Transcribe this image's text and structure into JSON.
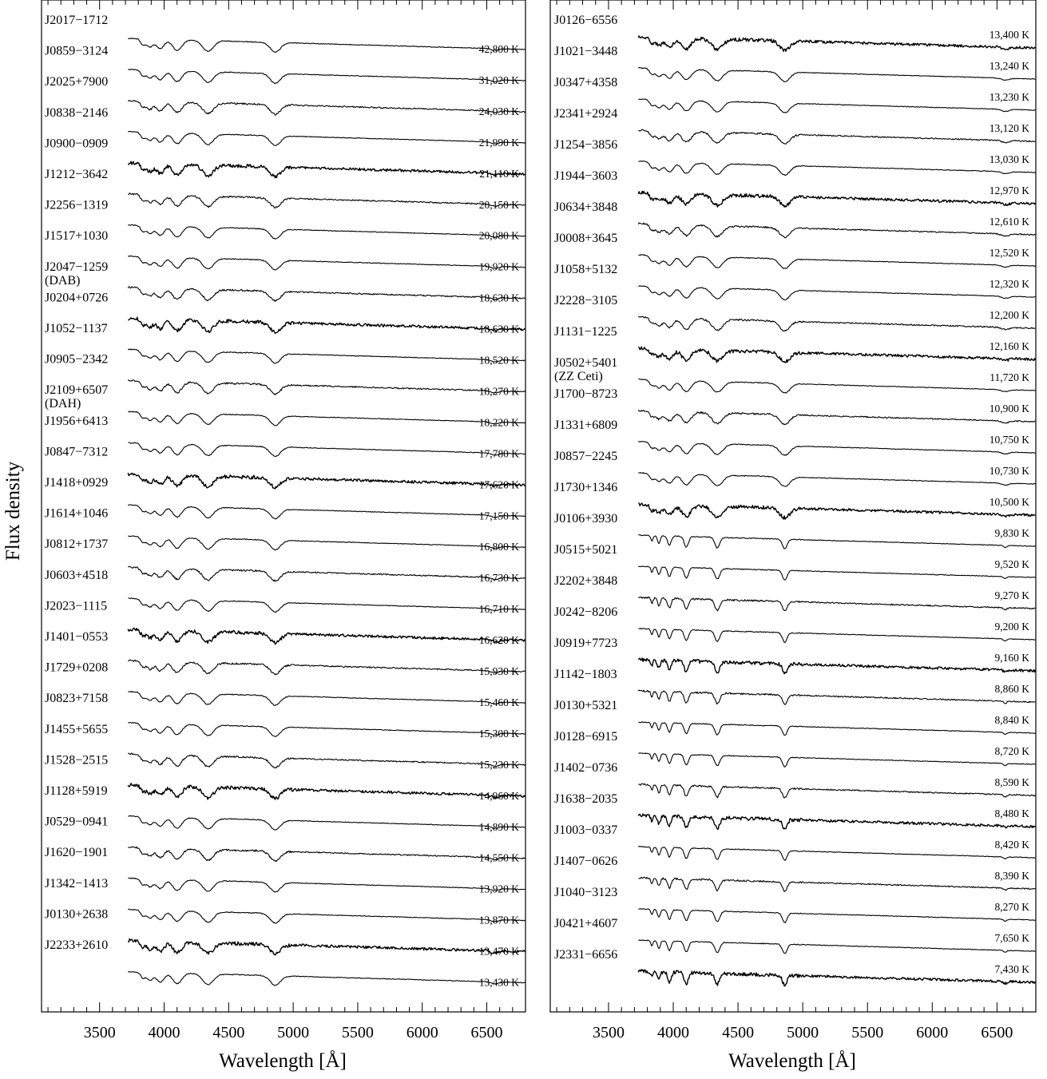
{
  "chart_data": [
    {
      "type": "line",
      "xlabel": "Wavelength [Å]",
      "ylabel": "Flux density",
      "xlim": [
        3050,
        6800
      ],
      "xticks": [
        3500,
        4000,
        4500,
        5000,
        5500,
        6000,
        6500
      ],
      "spectra": [
        {
          "name": "J2017−1712",
          "temp": null
        },
        {
          "name": "J0859−3124",
          "temp": "42,800 K"
        },
        {
          "name": "J2025+7900",
          "temp": "31,020 K"
        },
        {
          "name": "J0838−2146",
          "temp": "24,030 K"
        },
        {
          "name": "J0900−0909",
          "temp": "21,990 K"
        },
        {
          "name": "J1212−3642",
          "temp": "21,110 K"
        },
        {
          "name": "J2256−1319",
          "temp": "20,150 K"
        },
        {
          "name": "J1517+1030",
          "temp": "20,080 K"
        },
        {
          "name": "J2047−1259",
          "sublabel": "(DAB)",
          "temp": "19,920 K"
        },
        {
          "name": "J0204+0726",
          "temp": "18,630 K"
        },
        {
          "name": "J1052−1137",
          "temp": "18,630 K"
        },
        {
          "name": "J0905−2342",
          "temp": "18,520 K"
        },
        {
          "name": "J2109+6507",
          "sublabel": "(DAH)",
          "temp": "18,270 K"
        },
        {
          "name": "J1956+6413",
          "temp": "18,220 K"
        },
        {
          "name": "J0847−7312",
          "temp": "17,780 K"
        },
        {
          "name": "J1418+0929",
          "temp": "17,620 K"
        },
        {
          "name": "J1614+1046",
          "temp": "17,150 K"
        },
        {
          "name": "J0812+1737",
          "temp": "16,800 K"
        },
        {
          "name": "J0603+4518",
          "temp": "16,730 K"
        },
        {
          "name": "J2023−1115",
          "temp": "16,710 K"
        },
        {
          "name": "J1401−0553",
          "temp": "16,620 K"
        },
        {
          "name": "J1729+0208",
          "temp": "15,930 K"
        },
        {
          "name": "J0823+7158",
          "temp": "15,460 K"
        },
        {
          "name": "J1455+5655",
          "temp": "15,300 K"
        },
        {
          "name": "J1528−2515",
          "temp": "15,230 K"
        },
        {
          "name": "J1128+5919",
          "temp": "14,960 K"
        },
        {
          "name": "J0529−0941",
          "temp": "14,890 K"
        },
        {
          "name": "J1620−1901",
          "temp": "14,550 K"
        },
        {
          "name": "J1342−1413",
          "temp": "13,920 K"
        },
        {
          "name": "J0130+2638",
          "temp": "13,870 K"
        },
        {
          "name": "J2233+2610",
          "temp": "13,470 K"
        },
        {
          "name": null,
          "temp": "13,430 K"
        }
      ]
    },
    {
      "type": "line",
      "xlabel": "Wavelength [Å]",
      "ylabel": "",
      "xlim": [
        3050,
        6800
      ],
      "xticks": [
        3500,
        4000,
        4500,
        5000,
        5500,
        6000,
        6500
      ],
      "spectra": [
        {
          "name": "J0126−6556",
          "temp": "13,400 K"
        },
        {
          "name": "J1021−3448",
          "temp": "13,240 K"
        },
        {
          "name": "J0347+4358",
          "temp": "13,230 K"
        },
        {
          "name": "J2341+2924",
          "temp": "13,120 K"
        },
        {
          "name": "J1254−3856",
          "temp": "13,030 K"
        },
        {
          "name": "J1944−3603",
          "temp": "12,970 K"
        },
        {
          "name": "J0634+3848",
          "temp": "12,610 K"
        },
        {
          "name": "J0008+3645",
          "temp": "12,520 K"
        },
        {
          "name": "J1058+5132",
          "temp": "12,320 K"
        },
        {
          "name": "J2228−3105",
          "temp": "12,200 K"
        },
        {
          "name": "J1131−1225",
          "temp": "12,160 K"
        },
        {
          "name": "J0502+5401",
          "sublabel": "(ZZ Ceti)",
          "temp": "11,720 K"
        },
        {
          "name": "J1700−8723",
          "temp": "10,900 K"
        },
        {
          "name": "J1331+6809",
          "temp": "10,750 K"
        },
        {
          "name": "J0857−2245",
          "temp": "10,730 K"
        },
        {
          "name": "J1730+1346",
          "temp": "10,500 K"
        },
        {
          "name": "J0106+3930",
          "temp": "9,830 K"
        },
        {
          "name": "J0515+5021",
          "temp": "9,520 K"
        },
        {
          "name": "J2202+3848",
          "temp": "9,270 K"
        },
        {
          "name": "J0242−8206",
          "temp": "9,200 K"
        },
        {
          "name": "J0919+7723",
          "temp": "9,160 K"
        },
        {
          "name": "J1142−1803",
          "temp": "8,860 K"
        },
        {
          "name": "J0130+5321",
          "temp": "8,840 K"
        },
        {
          "name": "J0128−6915",
          "temp": "8,720 K"
        },
        {
          "name": "J1402−0736",
          "temp": "8,590 K"
        },
        {
          "name": "J1638−2035",
          "temp": "8,480 K"
        },
        {
          "name": "J1003−0337",
          "temp": "8,420 K"
        },
        {
          "name": "J1407−0626",
          "temp": "8,390 K"
        },
        {
          "name": "J1040−3123",
          "temp": "8,270 K"
        },
        {
          "name": "J0421+4607",
          "temp": "7,650 K"
        },
        {
          "name": "J2331−6656",
          "temp": "7,430 K"
        }
      ]
    }
  ]
}
